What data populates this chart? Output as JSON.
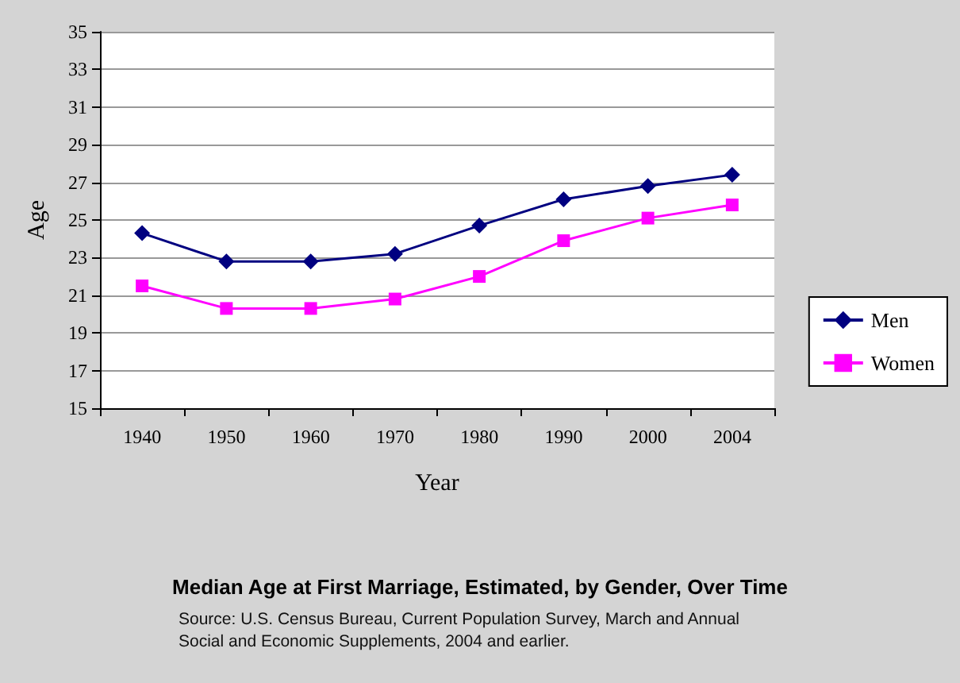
{
  "chart_data": {
    "type": "line",
    "title": "Median Age at First Marriage, Estimated, by Gender, Over Time",
    "xlabel": "Year",
    "ylabel": "Age",
    "annotations": [
      "Source: U.S. Census Bureau, Current Population Survey, March and Annual Social and Economic Supplements, 2004 and earlier."
    ],
    "categories": [
      "1940",
      "1950",
      "1960",
      "1970",
      "1980",
      "1990",
      "2000",
      "2004"
    ],
    "series": [
      {
        "name": "Men",
        "color": "#000080",
        "marker": "diamond",
        "values": [
          24.3,
          22.8,
          22.8,
          23.2,
          24.7,
          26.1,
          26.8,
          27.4
        ]
      },
      {
        "name": "Women",
        "color": "#ff00ff",
        "marker": "square",
        "values": [
          21.5,
          20.3,
          20.3,
          20.8,
          22.0,
          23.9,
          25.1,
          25.8
        ]
      }
    ],
    "ylim": [
      15,
      35
    ],
    "yticks": [
      15,
      17,
      19,
      21,
      23,
      25,
      27,
      29,
      31,
      33,
      35
    ],
    "grid": "y",
    "legend": "right"
  }
}
